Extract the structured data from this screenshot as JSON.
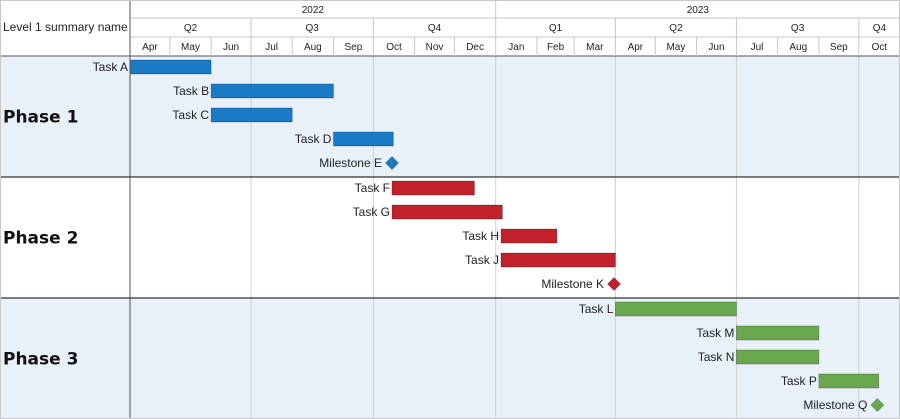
{
  "header": {
    "summary_label": "Level 1 summary name",
    "years": [
      "2022",
      "2023"
    ],
    "quarters": [
      "Q2",
      "Q3",
      "Q4",
      "Q1",
      "Q2",
      "Q3",
      "Q4"
    ],
    "months": [
      "Apr",
      "May",
      "Jun",
      "Jul",
      "Aug",
      "Sep",
      "Oct",
      "Nov",
      "Dec",
      "Jan",
      "Feb",
      "Mar",
      "Apr",
      "May",
      "Jun",
      "Jul",
      "Aug",
      "Sep",
      "Oct"
    ]
  },
  "colors": {
    "phase_band": "#e8f1f8",
    "grid": "#d0d0d0",
    "border": "#555555",
    "phase1": "#1a7bc4",
    "phase2": "#c0212a",
    "phase3": "#6aa84f"
  },
  "chart_data": {
    "type": "gantt",
    "time_axis": {
      "start": "2022-04-01",
      "end": "2023-10-31"
    },
    "phases": [
      {
        "name": "Phase 1",
        "color": "#1a7bc4",
        "band": true,
        "tasks": [
          {
            "name": "Task A",
            "start": "2022-04-01",
            "end": "2022-05-31"
          },
          {
            "name": "Task B",
            "start": "2022-06-01",
            "end": "2022-08-31"
          },
          {
            "name": "Task C",
            "start": "2022-06-01",
            "end": "2022-07-31"
          },
          {
            "name": "Task D",
            "start": "2022-09-01",
            "end": "2022-10-15"
          },
          {
            "name": "Milestone E",
            "milestone": true,
            "date": "2022-10-15"
          }
        ]
      },
      {
        "name": "Phase 2",
        "color": "#c0212a",
        "band": false,
        "tasks": [
          {
            "name": "Task F",
            "start": "2022-10-15",
            "end": "2022-12-15"
          },
          {
            "name": "Task G",
            "start": "2022-10-15",
            "end": "2023-01-05"
          },
          {
            "name": "Task H",
            "start": "2023-01-05",
            "end": "2023-02-15"
          },
          {
            "name": "Task J",
            "start": "2023-01-05",
            "end": "2023-03-31"
          },
          {
            "name": "Milestone K",
            "milestone": true,
            "date": "2023-03-31"
          }
        ]
      },
      {
        "name": "Phase 3",
        "color": "#6aa84f",
        "band": true,
        "tasks": [
          {
            "name": "Task L",
            "start": "2023-04-01",
            "end": "2023-06-30"
          },
          {
            "name": "Task M",
            "start": "2023-07-01",
            "end": "2023-08-31"
          },
          {
            "name": "Task N",
            "start": "2023-07-01",
            "end": "2023-08-31"
          },
          {
            "name": "Task P",
            "start": "2023-09-01",
            "end": "2023-10-15"
          },
          {
            "name": "Milestone Q",
            "milestone": true,
            "date": "2023-10-15"
          }
        ]
      }
    ]
  }
}
